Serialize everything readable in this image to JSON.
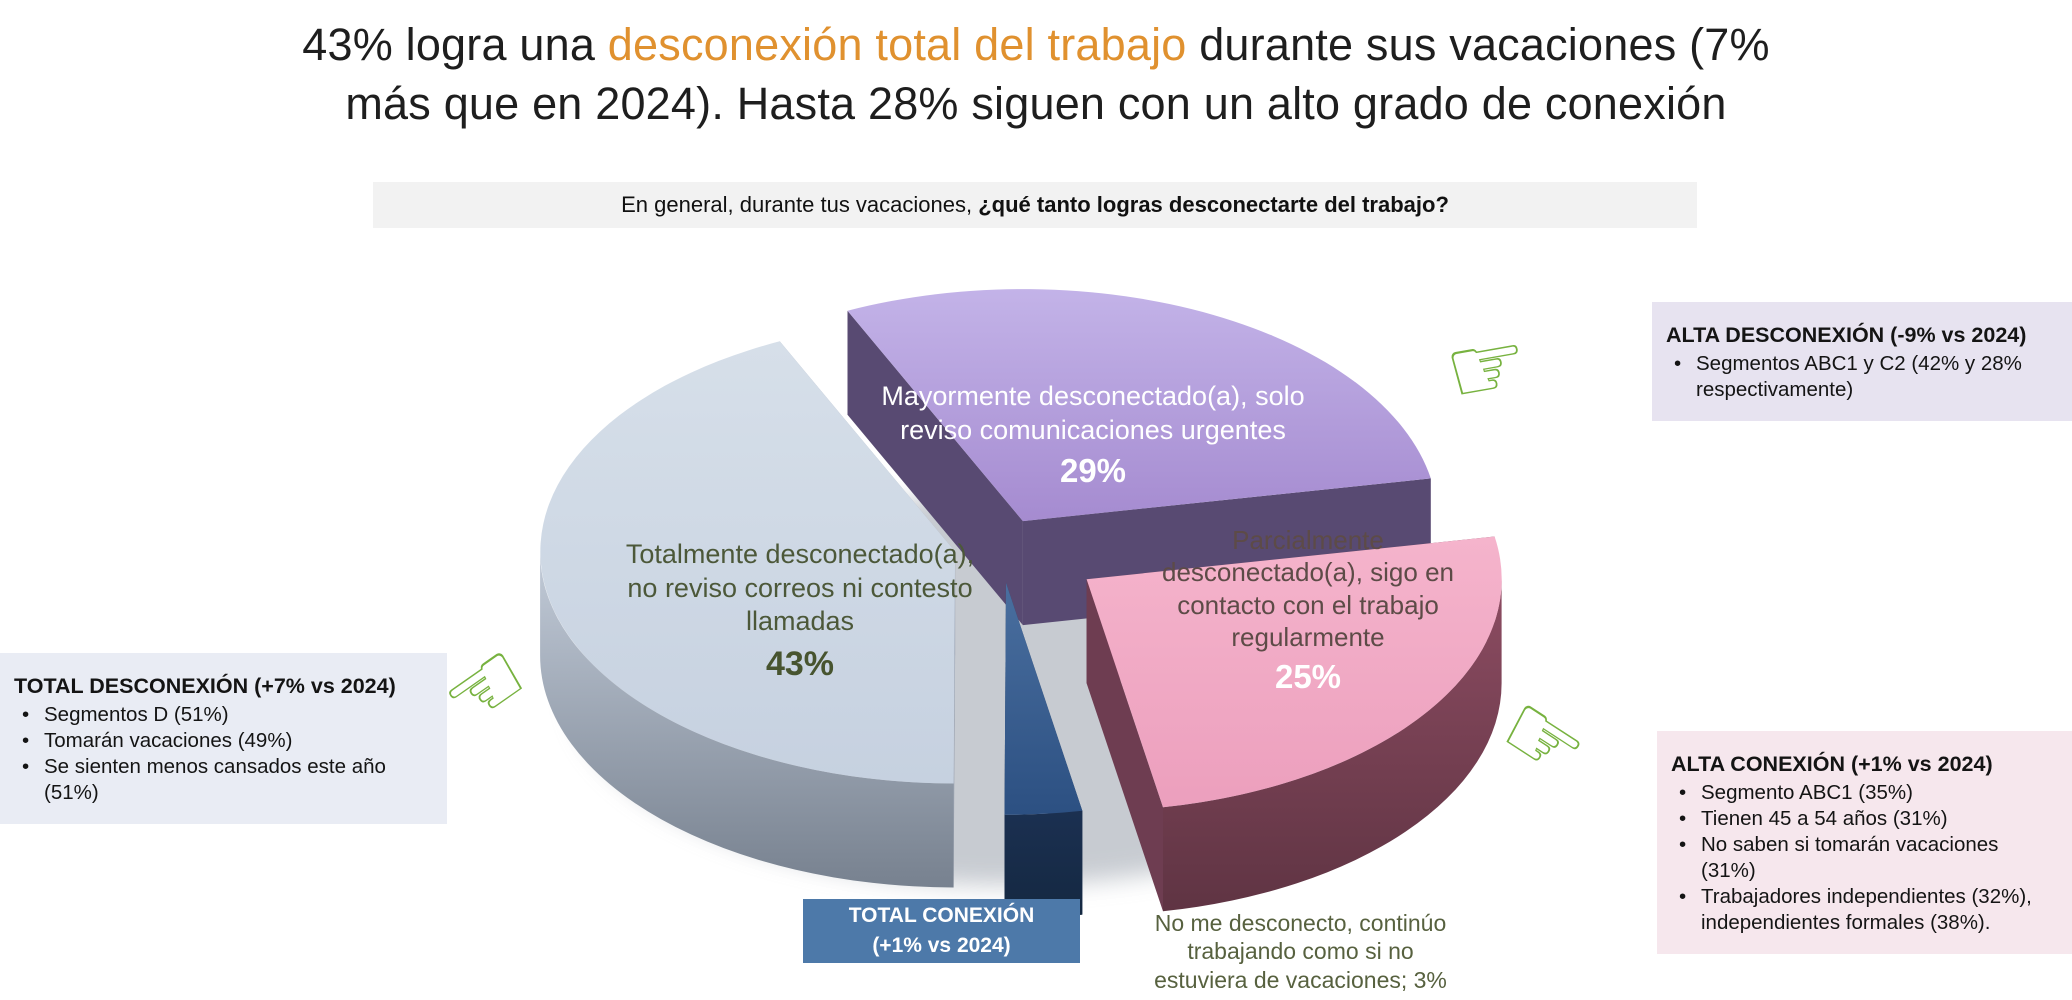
{
  "title": {
    "line1_pre": "43% logra una ",
    "line1_highlight": "desconexión total del trabajo",
    "line1_post": " durante sus vacaciones (7%",
    "line2": "más que en 2024). Hasta 28% siguen con un alto grado de conexión"
  },
  "question": {
    "pre": "En general, durante tus vacaciones, ",
    "bold": "¿qué tanto logras desconectarte del trabajo?"
  },
  "chart_data": {
    "type": "pie",
    "style": "3d-exploded",
    "title": "¿Qué tanto logras desconectarte del trabajo durante tus vacaciones?",
    "start_angle_deg": 115,
    "direction": "clockwise",
    "slices": [
      {
        "label": "Totalmente desconectado(a),\nno reviso correos ni contesto\nllamadas",
        "value": 43,
        "pct_label": "43%",
        "colors": {
          "top": [
            "#D6DFE9",
            "#C6D1E0"
          ],
          "side": "#98A1B0",
          "rim": [
            "#C2CBD8",
            "#77818F"
          ]
        }
      },
      {
        "label": "Mayormente desconectado(a), solo\nreviso comunicaciones urgentes",
        "value": 29,
        "pct_label": "29%",
        "colors": {
          "top": [
            "#C3B3E8",
            "#A58BD0"
          ],
          "side": "#584A72",
          "rim": [
            "#584A72",
            "#473A5C"
          ]
        }
      },
      {
        "label": "Parcialmente\ndesconectado(a), sigo en\ncontacto con el trabajo\nregularmente",
        "value": 25,
        "pct_label": "25%",
        "colors": {
          "top": [
            "#F5B4CC",
            "#EC9FBD"
          ],
          "side": "#6E3D51",
          "rim": [
            "#8D4C62",
            "#5F3443"
          ]
        }
      },
      {
        "label": "No me desconecto, continúo trabajando como si no estuviera de vacaciones",
        "value": 3,
        "pct_label": "3%",
        "external_label": "No me desconecto, continúo\ntrabajando como si no\nestuviera de vacaciones; 3%",
        "colors": {
          "top": [
            "#4A6F9F",
            "#2C5082"
          ],
          "side": "#1E3353",
          "rim": [
            "#1B3051",
            "#142841"
          ]
        }
      }
    ]
  },
  "total_conexion_box": {
    "line1": "TOTAL CONEXIÓN",
    "line2": "(+1% vs 2024)"
  },
  "callouts": {
    "total_desconexion": {
      "heading": "TOTAL DESCONEXIÓN (+7% vs 2024)",
      "items": [
        "Segmentos D (51%)",
        "Tomarán vacaciones (49%)",
        "Se sienten menos cansados este año (51%)"
      ]
    },
    "alta_desconexion": {
      "heading": "ALTA DESCONEXIÓN (-9% vs 2024)",
      "items": [
        "Segmentos ABC1 y C2 (42% y 28% respectivamente)"
      ]
    },
    "alta_conexion": {
      "heading": "ALTA CONEXIÓN (+1% vs 2024)",
      "items": [
        "Segmento ABC1 (35%)",
        "Tienen 45 a 54 años (31%)",
        "No saben si tomarán vacaciones (31%)",
        "Trabajadores independientes (32%), independientes formales (38%)."
      ]
    }
  },
  "icons": {
    "hand_right": "☞",
    "hand_left": "☜"
  },
  "colors": {
    "accent_orange": "#E0912F",
    "hand_green": "#77B23F",
    "banner_bg": "#F2F2F2",
    "callout_blue_bg": "#E9ECF4",
    "callout_lavender_bg": "#E7E3F0",
    "callout_pink_bg": "#F6E7ED",
    "total_conexion_bg": "#4D79A9"
  }
}
